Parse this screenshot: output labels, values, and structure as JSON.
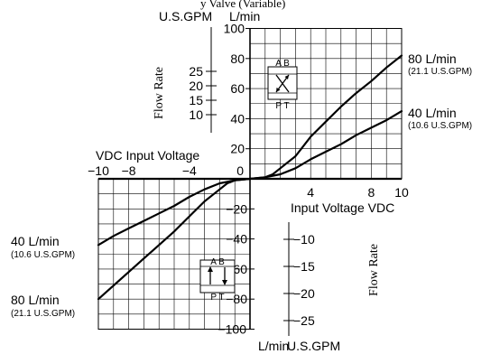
{
  "chart_data": {
    "type": "line",
    "title": "",
    "top_fragment": "y Valve (Variable)",
    "units": {
      "upper_gpm": "U.S.GPM",
      "upper_lpm": "L/min",
      "lower_lpm": "L/min",
      "lower_gpm": "U.S.GPM"
    },
    "axis_labels": {
      "flow_rate_upper": "Flow Rate",
      "flow_rate_lower": "Flow Rate",
      "input_voltage_left": "VDC Input Voltage",
      "input_voltage_right": "Input Voltage VDC"
    },
    "xlim": [
      -10,
      10
    ],
    "ylim": [
      -100,
      100
    ],
    "x_ticks": [
      {
        "value": -10,
        "label": "−10"
      },
      {
        "value": -8,
        "label": "−8"
      },
      {
        "value": -4,
        "label": "−4"
      },
      {
        "value": 4,
        "label": "4"
      },
      {
        "value": 8,
        "label": "8"
      },
      {
        "value": 10,
        "label": "10"
      }
    ],
    "y_ticks_lpm": [
      {
        "value": 100,
        "label": "100"
      },
      {
        "value": 80,
        "label": "80"
      },
      {
        "value": 60,
        "label": "60"
      },
      {
        "value": 40,
        "label": "40"
      },
      {
        "value": 20,
        "label": "20"
      },
      {
        "value": 0,
        "label": "0"
      },
      {
        "value": -20,
        "label": "−20"
      },
      {
        "value": -40,
        "label": "−40"
      },
      {
        "value": -60,
        "label": "−60"
      },
      {
        "value": -80,
        "label": "−80"
      },
      {
        "value": -100,
        "label": "−100"
      }
    ],
    "gpm_ticks_upper": [
      {
        "value": 25,
        "label": "25"
      },
      {
        "value": 20,
        "label": "20"
      },
      {
        "value": 15,
        "label": "15"
      },
      {
        "value": 10,
        "label": "10"
      }
    ],
    "gpm_ticks_lower": [
      {
        "value": -10,
        "label": "−10"
      },
      {
        "value": -15,
        "label": "−15"
      },
      {
        "value": -20,
        "label": "−20"
      },
      {
        "value": -25,
        "label": "−25"
      }
    ],
    "series": [
      {
        "name": "80 L/min",
        "subtitle": "(21.1 U.S.GPM)",
        "points": [
          [
            -10,
            -80
          ],
          [
            -9,
            -71
          ],
          [
            -8,
            -62
          ],
          [
            -7,
            -53
          ],
          [
            -6,
            -44
          ],
          [
            -5,
            -35
          ],
          [
            -4,
            -25
          ],
          [
            -3,
            -15
          ],
          [
            -2,
            -7
          ],
          [
            -1.5,
            -3
          ],
          [
            -1,
            -1
          ],
          [
            0,
            0
          ],
          [
            1,
            1
          ],
          [
            1.5,
            3
          ],
          [
            2,
            7
          ],
          [
            3,
            15
          ],
          [
            4,
            28
          ],
          [
            5,
            38
          ],
          [
            6,
            48
          ],
          [
            7,
            57
          ],
          [
            8,
            65
          ],
          [
            9,
            74
          ],
          [
            10,
            82
          ]
        ]
      },
      {
        "name": "40 L/min",
        "subtitle": "(10.6 U.S.GPM)",
        "points": [
          [
            -10,
            -44
          ],
          [
            -9,
            -38
          ],
          [
            -8,
            -33
          ],
          [
            -7,
            -28
          ],
          [
            -6,
            -23
          ],
          [
            -5,
            -18
          ],
          [
            -4,
            -12
          ],
          [
            -3,
            -7
          ],
          [
            -2,
            -3
          ],
          [
            -1,
            -1
          ],
          [
            0,
            0
          ],
          [
            1,
            1
          ],
          [
            2,
            3
          ],
          [
            3,
            7
          ],
          [
            4,
            13
          ],
          [
            5,
            18
          ],
          [
            6,
            23
          ],
          [
            7,
            29
          ],
          [
            8,
            34
          ],
          [
            9,
            39
          ],
          [
            10,
            45
          ]
        ]
      }
    ],
    "valve_symbol": {
      "upper": {
        "top": "A B",
        "bottom": "P T"
      },
      "lower": {
        "top": "A B",
        "bottom": "P T"
      }
    },
    "grid": true
  }
}
